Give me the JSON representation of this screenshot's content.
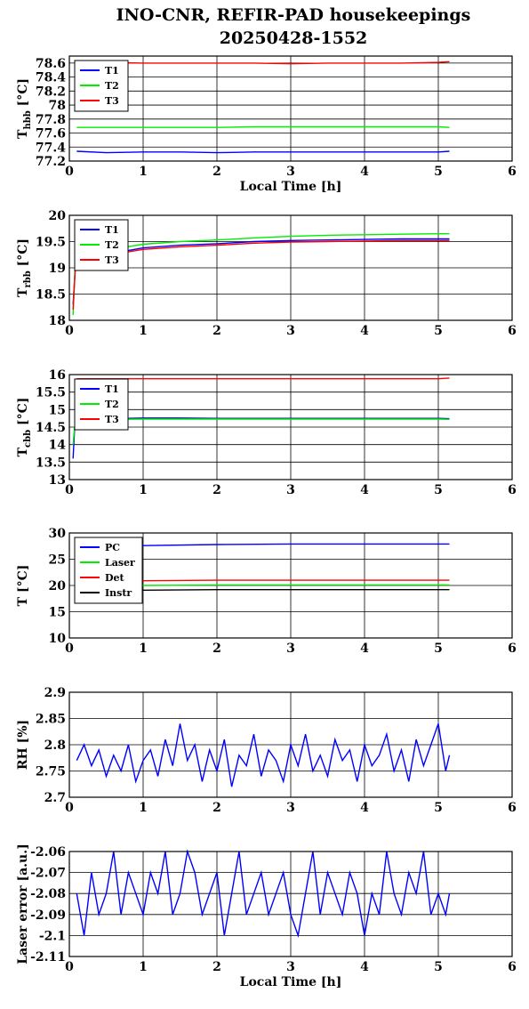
{
  "page": {
    "title_line1": "INO-CNR, REFIR-PAD housekeepings",
    "title_line2": "20250428-1552"
  },
  "chart_data": [
    {
      "type": "line",
      "ylabel_main": "T",
      "ylabel_sub": "hbb",
      "ylabel_unit": " [°C]",
      "xlabel": "Local Time [h]",
      "xlim": [
        0,
        6
      ],
      "ylim": [
        77.2,
        78.7
      ],
      "xticks": [
        "0",
        "1",
        "2",
        "3",
        "4",
        "5",
        "6"
      ],
      "yticks": [
        "77.2",
        "77.4",
        "77.6",
        "77.8",
        "78",
        "78.2",
        "78.4",
        "78.6"
      ],
      "ytick_values": [
        77.2,
        77.4,
        77.6,
        77.8,
        78.0,
        78.2,
        78.4,
        78.6
      ],
      "grid": true,
      "legend": "top-left",
      "series": [
        {
          "name": "T1",
          "color": "#0000ff",
          "x": [
            0.1,
            0.5,
            1.0,
            1.5,
            2.0,
            2.5,
            3.0,
            3.5,
            4.0,
            4.5,
            5.0,
            5.15
          ],
          "y": [
            77.34,
            77.32,
            77.33,
            77.33,
            77.32,
            77.33,
            77.33,
            77.33,
            77.33,
            77.33,
            77.33,
            77.34
          ]
        },
        {
          "name": "T2",
          "color": "#00ee00",
          "x": [
            0.1,
            0.5,
            1.0,
            1.5,
            2.0,
            2.5,
            3.0,
            3.5,
            4.0,
            4.5,
            5.0,
            5.15
          ],
          "y": [
            77.68,
            77.68,
            77.68,
            77.68,
            77.68,
            77.69,
            77.69,
            77.69,
            77.69,
            77.69,
            77.69,
            77.68
          ]
        },
        {
          "name": "T3",
          "color": "#ff0000",
          "x": [
            0.1,
            0.5,
            1.0,
            1.5,
            2.0,
            2.5,
            3.0,
            3.5,
            4.0,
            4.5,
            5.0,
            5.15
          ],
          "y": [
            78.61,
            78.61,
            78.6,
            78.6,
            78.6,
            78.6,
            78.59,
            78.6,
            78.6,
            78.6,
            78.61,
            78.62
          ]
        }
      ]
    },
    {
      "type": "line",
      "ylabel_main": "T",
      "ylabel_sub": "rbb",
      "ylabel_unit": " [°C]",
      "xlabel": "",
      "xlim": [
        0,
        6
      ],
      "ylim": [
        18,
        20
      ],
      "xticks": [
        "0",
        "1",
        "2",
        "3",
        "4",
        "5",
        "6"
      ],
      "yticks": [
        "18",
        "18.5",
        "19",
        "19.5",
        "20"
      ],
      "ytick_values": [
        18,
        18.5,
        19,
        19.5,
        20
      ],
      "grid": true,
      "legend": "top-left",
      "series": [
        {
          "name": "T1",
          "color": "#0000ff",
          "x": [
            0.05,
            0.08,
            0.1,
            0.3,
            0.6,
            1.0,
            1.5,
            2.0,
            2.5,
            3.0,
            3.5,
            4.0,
            4.5,
            5.0,
            5.15
          ],
          "y": [
            18.3,
            19.0,
            19.15,
            19.22,
            19.28,
            19.38,
            19.43,
            19.46,
            19.5,
            19.52,
            19.53,
            19.54,
            19.55,
            19.55,
            19.55
          ]
        },
        {
          "name": "T2",
          "color": "#00ee00",
          "x": [
            0.05,
            0.08,
            0.1,
            0.3,
            0.6,
            1.0,
            1.5,
            2.0,
            2.5,
            3.0,
            3.5,
            4.0,
            4.5,
            5.0,
            5.15
          ],
          "y": [
            18.1,
            19.1,
            19.2,
            19.3,
            19.36,
            19.45,
            19.5,
            19.53,
            19.57,
            19.6,
            19.62,
            19.63,
            19.64,
            19.65,
            19.65
          ]
        },
        {
          "name": "T3",
          "color": "#ff0000",
          "x": [
            0.05,
            0.08,
            0.1,
            0.3,
            0.6,
            1.0,
            1.5,
            2.0,
            2.5,
            3.0,
            3.5,
            4.0,
            4.5,
            5.0,
            5.15
          ],
          "y": [
            18.2,
            18.95,
            19.1,
            19.2,
            19.26,
            19.35,
            19.4,
            19.43,
            19.47,
            19.49,
            19.5,
            19.51,
            19.52,
            19.52,
            19.52
          ]
        }
      ]
    },
    {
      "type": "line",
      "ylabel_main": "T",
      "ylabel_sub": "cbb",
      "ylabel_unit": " [°C]",
      "xlabel": "",
      "xlim": [
        0,
        6
      ],
      "ylim": [
        13,
        16
      ],
      "xticks": [
        "0",
        "1",
        "2",
        "3",
        "4",
        "5",
        "6"
      ],
      "yticks": [
        "13",
        "13.5",
        "14",
        "14.5",
        "15",
        "15.5",
        "16"
      ],
      "ytick_values": [
        13,
        13.5,
        14,
        14.5,
        15,
        15.5,
        16
      ],
      "grid": true,
      "legend": "top-left",
      "series": [
        {
          "name": "T1",
          "color": "#0000ff",
          "x": [
            0.05,
            0.07,
            0.1,
            0.3,
            0.6,
            1.0,
            1.5,
            2.0,
            2.5,
            3.0,
            3.5,
            4.0,
            4.5,
            5.0,
            5.15
          ],
          "y": [
            13.6,
            14.4,
            14.65,
            14.72,
            14.74,
            14.76,
            14.76,
            14.75,
            14.75,
            14.75,
            14.75,
            14.75,
            14.75,
            14.75,
            14.74
          ]
        },
        {
          "name": "T2",
          "color": "#00ee00",
          "x": [
            0.05,
            0.07,
            0.1,
            0.3,
            0.6,
            1.0,
            1.5,
            2.0,
            2.5,
            3.0,
            3.5,
            4.0,
            4.5,
            5.0,
            5.15
          ],
          "y": [
            14.0,
            14.5,
            14.65,
            14.7,
            14.72,
            14.73,
            14.73,
            14.73,
            14.73,
            14.73,
            14.73,
            14.73,
            14.73,
            14.73,
            14.72
          ]
        },
        {
          "name": "T3",
          "color": "#ff0000",
          "x": [
            0.1,
            0.5,
            1.0,
            1.5,
            2.0,
            2.5,
            3.0,
            3.5,
            4.0,
            4.5,
            5.0,
            5.15
          ],
          "y": [
            15.88,
            15.88,
            15.88,
            15.88,
            15.88,
            15.88,
            15.88,
            15.88,
            15.88,
            15.88,
            15.88,
            15.9
          ]
        }
      ]
    },
    {
      "type": "line",
      "ylabel_main": "T [°C]",
      "ylabel_sub": "",
      "ylabel_unit": "",
      "xlabel": "",
      "xlim": [
        0,
        6
      ],
      "ylim": [
        10,
        30
      ],
      "xticks": [
        "0",
        "1",
        "2",
        "3",
        "4",
        "5",
        "6"
      ],
      "yticks": [
        "10",
        "15",
        "20",
        "25",
        "30"
      ],
      "ytick_values": [
        10,
        15,
        20,
        25,
        30
      ],
      "grid": true,
      "legend": "top-left",
      "series": [
        {
          "name": "PC",
          "color": "#0000ff",
          "x": [
            0.1,
            1.0,
            2.0,
            3.0,
            4.0,
            5.0,
            5.15
          ],
          "y": [
            27.5,
            27.6,
            27.8,
            27.9,
            27.9,
            27.9,
            27.9
          ]
        },
        {
          "name": "Laser",
          "color": "#00ee00",
          "x": [
            0.1,
            1.0,
            2.0,
            3.0,
            4.0,
            5.0,
            5.15
          ],
          "y": [
            20.0,
            20.0,
            20.1,
            20.1,
            20.1,
            20.1,
            20.1
          ]
        },
        {
          "name": "Det",
          "color": "#ff0000",
          "x": [
            0.1,
            1.0,
            2.0,
            3.0,
            4.0,
            5.0,
            5.15
          ],
          "y": [
            20.9,
            20.9,
            21.0,
            21.0,
            21.0,
            21.0,
            21.0
          ]
        },
        {
          "name": "Instr",
          "color": "#000000",
          "x": [
            0.1,
            1.0,
            2.0,
            3.0,
            4.0,
            5.0,
            5.15
          ],
          "y": [
            19.1,
            19.1,
            19.2,
            19.2,
            19.2,
            19.2,
            19.2
          ]
        }
      ]
    },
    {
      "type": "line",
      "ylabel_main": "RH [%]",
      "ylabel_sub": "",
      "ylabel_unit": "",
      "xlabel": "",
      "xlim": [
        0,
        6
      ],
      "ylim": [
        2.7,
        2.9
      ],
      "xticks": [
        "0",
        "1",
        "2",
        "3",
        "4",
        "5",
        "6"
      ],
      "yticks": [
        "2.7",
        "2.75",
        "2.8",
        "2.85",
        "2.9"
      ],
      "ytick_values": [
        2.7,
        2.75,
        2.8,
        2.85,
        2.9
      ],
      "grid": true,
      "legend": "none",
      "series": [
        {
          "color": "#0000ff",
          "x": [
            0.1,
            0.2,
            0.3,
            0.4,
            0.5,
            0.6,
            0.7,
            0.8,
            0.9,
            1.0,
            1.1,
            1.2,
            1.3,
            1.4,
            1.5,
            1.6,
            1.7,
            1.8,
            1.9,
            2.0,
            2.1,
            2.2,
            2.3,
            2.4,
            2.5,
            2.6,
            2.7,
            2.8,
            2.9,
            3.0,
            3.1,
            3.2,
            3.3,
            3.4,
            3.5,
            3.6,
            3.7,
            3.8,
            3.9,
            4.0,
            4.1,
            4.2,
            4.3,
            4.4,
            4.5,
            4.6,
            4.7,
            4.8,
            4.9,
            5.0,
            5.1,
            5.15
          ],
          "y": [
            2.77,
            2.8,
            2.76,
            2.79,
            2.74,
            2.78,
            2.75,
            2.8,
            2.73,
            2.77,
            2.79,
            2.74,
            2.81,
            2.76,
            2.84,
            2.77,
            2.8,
            2.73,
            2.79,
            2.75,
            2.81,
            2.72,
            2.78,
            2.76,
            2.82,
            2.74,
            2.79,
            2.77,
            2.73,
            2.8,
            2.76,
            2.82,
            2.75,
            2.78,
            2.74,
            2.81,
            2.77,
            2.79,
            2.73,
            2.8,
            2.76,
            2.78,
            2.82,
            2.75,
            2.79,
            2.73,
            2.81,
            2.76,
            2.8,
            2.84,
            2.75,
            2.78
          ]
        }
      ]
    },
    {
      "type": "line",
      "ylabel_main": "Laser error [a.u.]",
      "ylabel_sub": "",
      "ylabel_unit": "",
      "xlabel": "Local Time [h]",
      "xlim": [
        0,
        6
      ],
      "ylim": [
        -2.11,
        -2.06
      ],
      "xticks": [
        "0",
        "1",
        "2",
        "3",
        "4",
        "5",
        "6"
      ],
      "yticks": [
        "-2.11",
        "-2.1",
        "-2.09",
        "-2.08",
        "-2.07",
        "-2.06"
      ],
      "ytick_values": [
        -2.11,
        -2.1,
        -2.09,
        -2.08,
        -2.07,
        -2.06
      ],
      "grid": true,
      "legend": "none",
      "series": [
        {
          "color": "#0000ff",
          "x": [
            0.1,
            0.2,
            0.3,
            0.4,
            0.5,
            0.6,
            0.7,
            0.8,
            0.9,
            1.0,
            1.1,
            1.2,
            1.3,
            1.4,
            1.5,
            1.6,
            1.7,
            1.8,
            1.9,
            2.0,
            2.1,
            2.2,
            2.3,
            2.4,
            2.5,
            2.6,
            2.7,
            2.8,
            2.9,
            3.0,
            3.1,
            3.2,
            3.3,
            3.4,
            3.5,
            3.6,
            3.7,
            3.8,
            3.9,
            4.0,
            4.1,
            4.2,
            4.3,
            4.4,
            4.5,
            4.6,
            4.7,
            4.8,
            4.9,
            5.0,
            5.1,
            5.15
          ],
          "y": [
            -2.08,
            -2.1,
            -2.07,
            -2.09,
            -2.08,
            -2.06,
            -2.09,
            -2.07,
            -2.08,
            -2.09,
            -2.07,
            -2.08,
            -2.06,
            -2.09,
            -2.08,
            -2.06,
            -2.07,
            -2.09,
            -2.08,
            -2.07,
            -2.1,
            -2.08,
            -2.06,
            -2.09,
            -2.08,
            -2.07,
            -2.09,
            -2.08,
            -2.07,
            -2.09,
            -2.1,
            -2.08,
            -2.06,
            -2.09,
            -2.07,
            -2.08,
            -2.09,
            -2.07,
            -2.08,
            -2.1,
            -2.08,
            -2.09,
            -2.06,
            -2.08,
            -2.09,
            -2.07,
            -2.08,
            -2.06,
            -2.09,
            -2.08,
            -2.09,
            -2.08
          ]
        }
      ]
    }
  ]
}
